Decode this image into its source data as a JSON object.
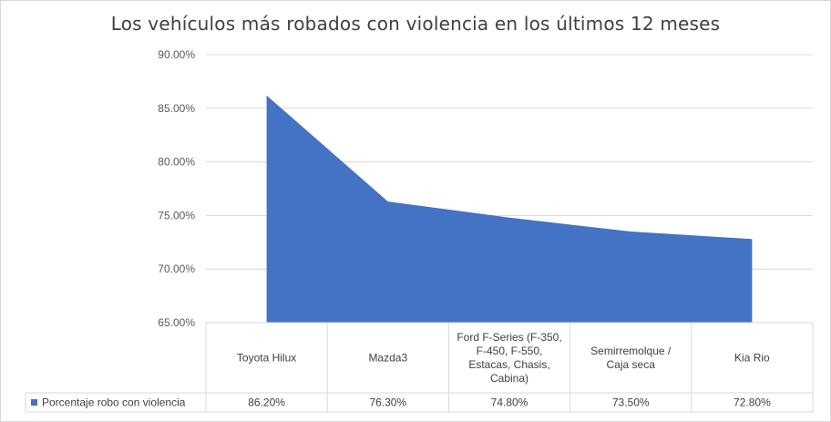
{
  "chart_data": {
    "type": "area",
    "title": "Los vehículos más robados con violencia en los últimos 12 meses",
    "categories": [
      [
        "Toyota Hilux"
      ],
      [
        "Mazda3"
      ],
      [
        "Ford F-Series (F-350,",
        "F-450, F-550,",
        "Estacas, Chasis,",
        "Cabina)"
      ],
      [
        "Semirremolque /",
        "Caja seca"
      ],
      [
        "Kia Rio"
      ]
    ],
    "series": [
      {
        "name": "Porcentaje robo con violencia",
        "values": [
          86.2,
          76.3,
          74.8,
          73.5,
          72.8
        ],
        "labels": [
          "86.20%",
          "76.30%",
          "74.80%",
          "73.50%",
          "72.80%"
        ]
      }
    ],
    "ylim": [
      65,
      90
    ],
    "yticks": [
      "65.00%",
      "70.00%",
      "75.00%",
      "80.00%",
      "85.00%",
      "90.00%"
    ],
    "grid": true,
    "legend": "data-table",
    "colors": {
      "series": "#4472c4",
      "grid": "#d9d9d9",
      "axis_text": "#595959"
    }
  }
}
